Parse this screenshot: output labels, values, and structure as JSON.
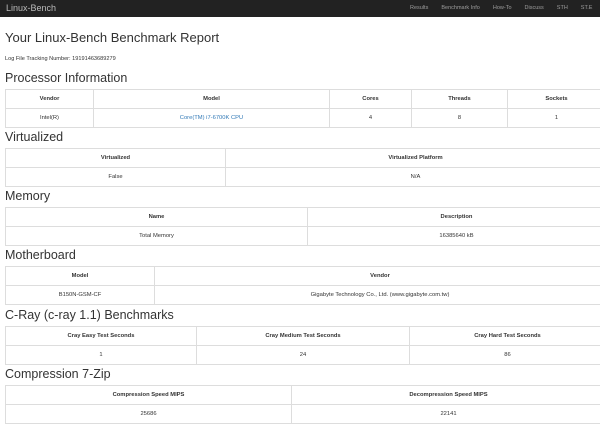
{
  "navbar": {
    "brand": "Linux-Bench",
    "links": [
      "Results",
      "Benchmark Info",
      "How-To",
      "Discuss",
      "STH",
      "ST.E"
    ]
  },
  "page": {
    "title": "Your Linux-Bench Benchmark Report",
    "tracking": "Log File Tracking Number: 19191463689279"
  },
  "processor": {
    "heading": "Processor Information",
    "columns": [
      "Vendor",
      "Model",
      "Cores",
      "Threads",
      "Sockets"
    ],
    "row": [
      "Intel(R)",
      "Core(TM) i7-6700K CPU",
      "4",
      "8",
      "1"
    ]
  },
  "virtualized": {
    "heading": "Virtualized",
    "columns": [
      "Virtualized",
      "Virtualized Platform"
    ],
    "row": [
      "False",
      "N/A"
    ]
  },
  "memory": {
    "heading": "Memory",
    "columns": [
      "Name",
      "Description"
    ],
    "row": [
      "Total Memory",
      "16385640 kB"
    ]
  },
  "motherboard": {
    "heading": "Motherboard",
    "columns": [
      "Model",
      "Vendor"
    ],
    "row": [
      "B150N-GSM-CF",
      "Gigabyte Technology Co., Ltd. (www.gigabyte.com.tw)"
    ]
  },
  "cray": {
    "heading": "C-Ray (c-ray 1.1) Benchmarks",
    "columns": [
      "Cray Easy Test Seconds",
      "Cray Medium Test Seconds",
      "Cray Hard Test Seconds"
    ],
    "row": [
      "1",
      "24",
      "86"
    ]
  },
  "compression": {
    "heading": "Compression 7-Zip",
    "columns": [
      "Compression Speed MIPS",
      "Decompression Speed MIPS"
    ],
    "row": [
      "25686",
      "22141"
    ]
  },
  "colors": {
    "navbar_bg": "#222222",
    "link": "#337ab7",
    "border": "#dddddd"
  }
}
